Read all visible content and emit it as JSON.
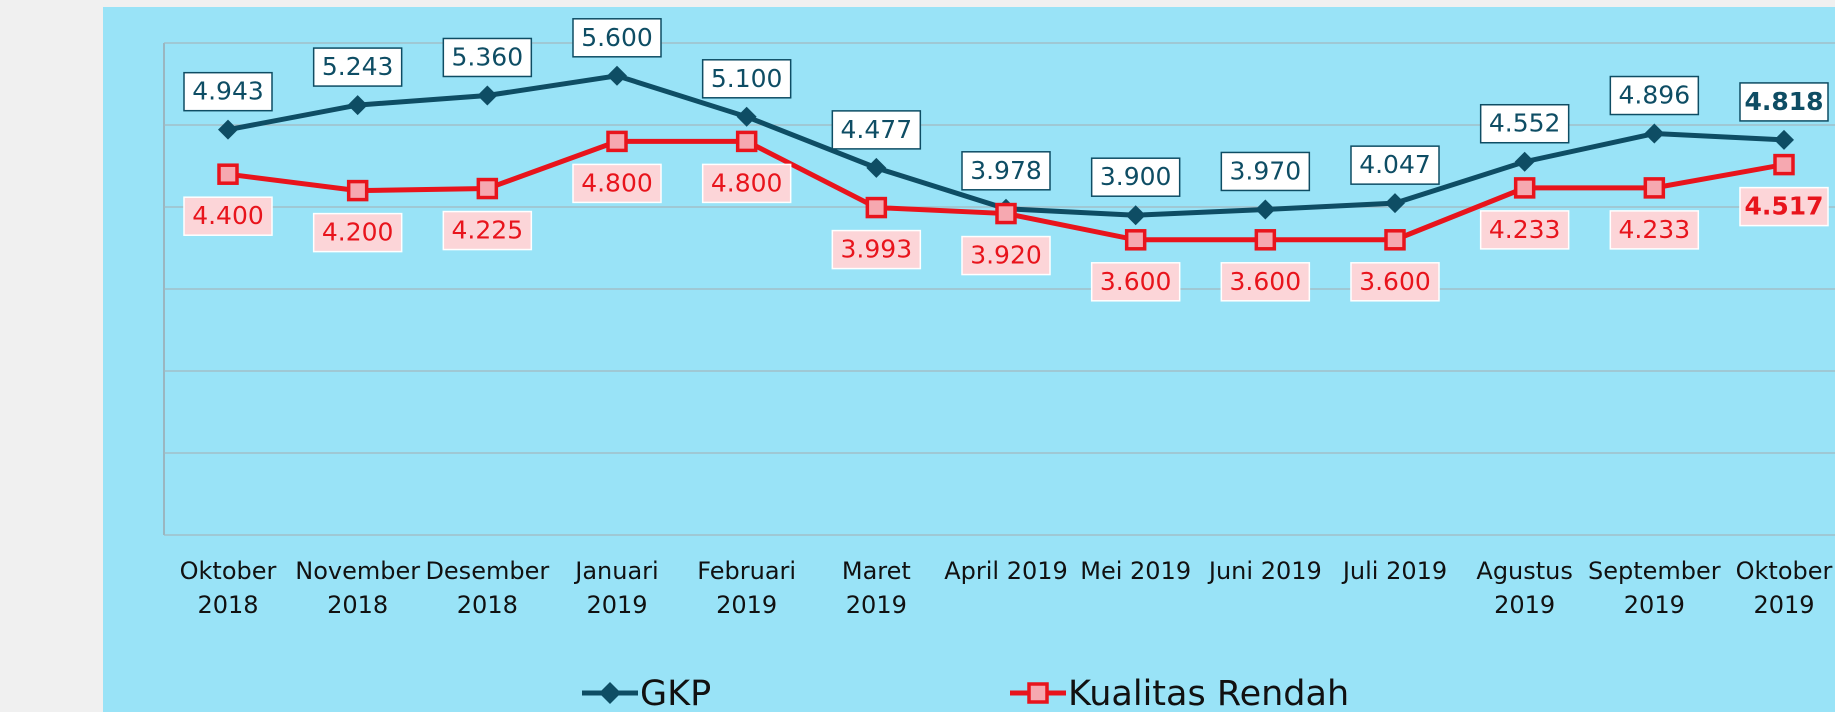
{
  "chart_data": {
    "type": "line",
    "categories": [
      "Oktober\n2018",
      "November\n2018",
      "Desember\n2018",
      "Januari\n2019",
      "Februari\n2019",
      "Maret\n2019",
      "April 2019",
      "Mei 2019",
      "Juni 2019",
      "Juli 2019",
      "Agustus\n2019",
      "September\n2019",
      "Oktober\n2019"
    ],
    "series": [
      {
        "name": "GKP",
        "color": "#0e4d64",
        "marker": "diamond",
        "values": [
          4.943,
          5.243,
          5.36,
          5.6,
          5.1,
          4.477,
          3.978,
          3.9,
          3.97,
          4.047,
          4.552,
          4.896,
          4.818
        ],
        "value_labels": [
          "4.943",
          "5.243",
          "5.360",
          "5.600",
          "5.100",
          "4.477",
          "3.978",
          "3.900",
          "3.970",
          "4.047",
          "4.552",
          "4.896",
          "4.818"
        ]
      },
      {
        "name": "Kualitas Rendah",
        "color": "#e8141c",
        "marker": "square",
        "values": [
          4.4,
          4.2,
          4.225,
          4.8,
          4.8,
          3.993,
          3.92,
          3.6,
          3.6,
          3.6,
          4.233,
          4.233,
          4.517
        ],
        "value_labels": [
          "4.400",
          "4.200",
          "4.225",
          "4.800",
          "4.800",
          "3.993",
          "3.920",
          "3.600",
          "3.600",
          "3.600",
          "4.233",
          "4.233",
          "4.517"
        ]
      }
    ],
    "ylim": [
      0,
      6
    ],
    "yticks": [
      0,
      1,
      2,
      3,
      4,
      5,
      6
    ],
    "grid": true,
    "legend": "bottom"
  }
}
